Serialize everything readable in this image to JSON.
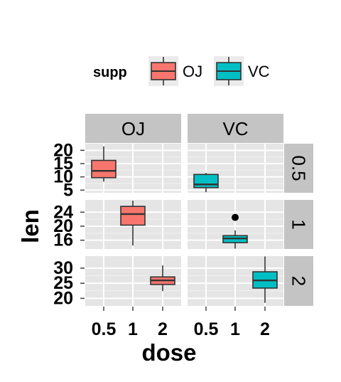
{
  "chart_data": {
    "type": "boxplot",
    "facet": {
      "cols": "supp",
      "rows": "dose",
      "col_levels": [
        "OJ",
        "VC"
      ],
      "row_levels": [
        "0.5",
        "1",
        "2"
      ],
      "scales": "free_y"
    },
    "x": {
      "label": "dose",
      "categories": [
        "0.5",
        "1",
        "2"
      ]
    },
    "y": {
      "label": "len"
    },
    "legend": {
      "title": "supp",
      "position": "top",
      "items": [
        {
          "name": "OJ",
          "color": "#F8766D"
        },
        {
          "name": "VC",
          "color": "#00BFC4"
        }
      ]
    },
    "rows": [
      {
        "label": "0.5",
        "ylim": [
          4,
          22.5
        ],
        "ticks": [
          5,
          10,
          15,
          20
        ]
      },
      {
        "label": "1",
        "ylim": [
          13.5,
          27.5
        ],
        "ticks": [
          16,
          20,
          24
        ]
      },
      {
        "label": "2",
        "ylim": [
          17.5,
          34
        ],
        "ticks": [
          20,
          25,
          30
        ]
      }
    ],
    "boxes": [
      {
        "supp": "OJ",
        "dose": "0.5",
        "min": 8.2,
        "q1": 9.7,
        "median": 12.25,
        "q3": 16.2,
        "max": 21.5,
        "outliers": []
      },
      {
        "supp": "VC",
        "dose": "0.5",
        "min": 4.2,
        "q1": 5.95,
        "median": 7.15,
        "q3": 10.9,
        "max": 11.5,
        "outliers": []
      },
      {
        "supp": "OJ",
        "dose": "1",
        "min": 14.5,
        "q1": 20.3,
        "median": 23.45,
        "q3": 25.65,
        "max": 27.3,
        "outliers": []
      },
      {
        "supp": "VC",
        "dose": "1",
        "min": 13.6,
        "q1": 15.3,
        "median": 16.5,
        "q3": 17.3,
        "max": 18.8,
        "outliers": [
          22.5
        ]
      },
      {
        "supp": "OJ",
        "dose": "2",
        "min": 22.4,
        "q1": 24.6,
        "median": 25.95,
        "q3": 27.1,
        "max": 30.9,
        "outliers": []
      },
      {
        "supp": "VC",
        "dose": "2",
        "min": 18.5,
        "q1": 23.4,
        "median": 25.95,
        "q3": 28.8,
        "max": 33.9,
        "outliers": []
      }
    ]
  }
}
